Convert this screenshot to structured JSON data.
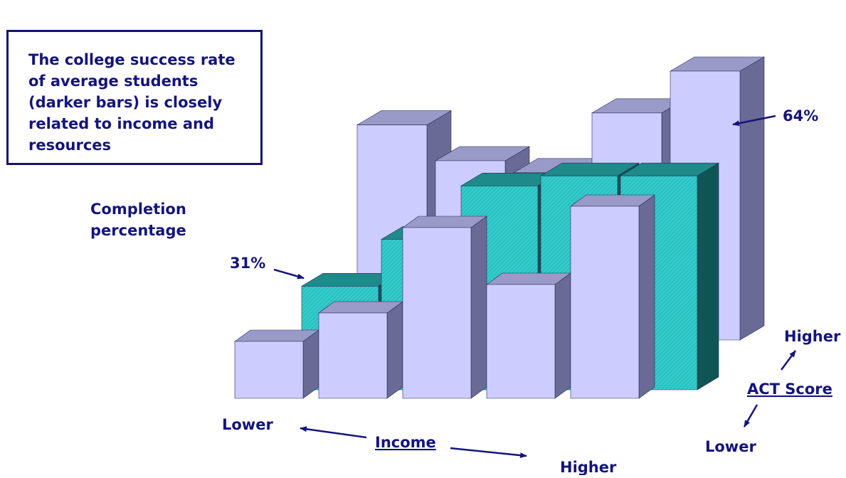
{
  "callout": {
    "text": "The college success rate\nof average students\n(darker bars) is closely\nrelated to income and\nresources"
  },
  "chart_data": {
    "type": "bar",
    "style": "3d",
    "ylabel": "Completion percentage",
    "x_axis": {
      "title": "Income",
      "low_label": "Lower",
      "high_label": "Higher",
      "categories": 5
    },
    "depth_axis": {
      "title": "ACT Score",
      "low_label": "Lower",
      "high_label": "Higher"
    },
    "series": [
      {
        "depth": "front",
        "highlighted": false,
        "values": [
          16,
          24,
          48,
          32,
          54
        ]
      },
      {
        "depth": "middle",
        "highlighted": true,
        "values": [
          31,
          45,
          61,
          64,
          64
        ]
      },
      {
        "depth": "back",
        "highlighted": false,
        "values": [
          72,
          60,
          56,
          76,
          90
        ]
      }
    ],
    "annotations": [
      {
        "text": "31%",
        "series": 1,
        "index": 0
      },
      {
        "text": "64%",
        "series": 1,
        "index": 4
      }
    ]
  },
  "colors": {
    "light_front": "#ccccff",
    "light_top": "#9a9ac9",
    "light_side": "#6a6a96",
    "teal_front": "#33cccc",
    "teal_top": "#1e8a8a",
    "teal_side": "#0e5555",
    "text": "#14147e",
    "arrow": "#14147e"
  }
}
